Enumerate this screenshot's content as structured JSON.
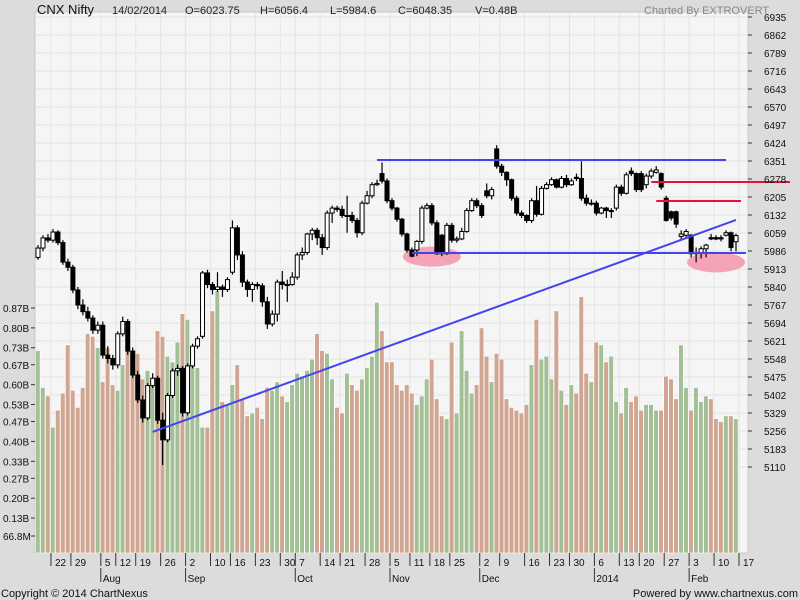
{
  "header": {
    "symbol": "CNX Nifty",
    "date": "14/02/2014",
    "open": "O=6023.75",
    "high": "H=6056.4",
    "low": "L=5984.6",
    "close": "C=6048.35",
    "volume": "V=0.48B",
    "charted_by": "Charted By EXTROVERT"
  },
  "footer": {
    "copyright": "Copyright © 2014 ChartNexus",
    "powered": "Powered by www.chartnexus.com"
  },
  "colors": {
    "plot_bg": "#f5f5f5",
    "grid": "#e4e4e4",
    "up_volume": "#a3bf96",
    "down_volume": "#d0a592",
    "trendline": "#4444ee",
    "resistance_red": "#e8103a",
    "highlight_ellipse": "#f590a8"
  },
  "chart_data": {
    "type": "candlestick",
    "grid": true,
    "price_axis": {
      "side": "right",
      "range": [
        5110,
        6935
      ],
      "ticks": [
        "6935",
        "6862",
        "6789",
        "6716",
        "6643",
        "6570",
        "6497",
        "6424",
        "6351",
        "6278",
        "6205",
        "6132",
        "6059",
        "5986",
        "5913",
        "5840",
        "5767",
        "5694",
        "5621",
        "5548",
        "5475",
        "5402",
        "5329",
        "5256",
        "5183",
        "5110"
      ]
    },
    "volume_axis": {
      "side": "left",
      "ticks": [
        {
          "label": "0.87B",
          "value": 0.87
        },
        {
          "label": "0.80B",
          "value": 0.8
        },
        {
          "label": "0.73B",
          "value": 0.73
        },
        {
          "label": "0.67B",
          "value": 0.67
        },
        {
          "label": "0.60B",
          "value": 0.6
        },
        {
          "label": "0.53B",
          "value": 0.53
        },
        {
          "label": "0.47B",
          "value": 0.47
        },
        {
          "label": "0.40B",
          "value": 0.4
        },
        {
          "label": "0.33B",
          "value": 0.33
        },
        {
          "label": "0.27B",
          "value": 0.27
        },
        {
          "label": "0.20B",
          "value": 0.2
        },
        {
          "label": "0.13B",
          "value": 0.13
        },
        {
          "label": "66.8M",
          "value": 0.0668
        }
      ]
    },
    "x_ticks": [
      {
        "bar": 3,
        "day": "22"
      },
      {
        "bar": 7,
        "day": "29"
      },
      {
        "bar": 13,
        "day": "5",
        "month": "Aug"
      },
      {
        "bar": 16,
        "day": "12"
      },
      {
        "bar": 20,
        "day": "19"
      },
      {
        "bar": 25,
        "day": "26"
      },
      {
        "bar": 30,
        "day": "2",
        "month": "Sep"
      },
      {
        "bar": 35,
        "day": "10"
      },
      {
        "bar": 39,
        "day": "16"
      },
      {
        "bar": 44,
        "day": "23"
      },
      {
        "bar": 49,
        "day": "30"
      },
      {
        "bar": 52,
        "day": "7",
        "month": "Oct"
      },
      {
        "bar": 57,
        "day": "14"
      },
      {
        "bar": 61,
        "day": "21"
      },
      {
        "bar": 66,
        "day": "28"
      },
      {
        "bar": 71,
        "day": "5",
        "month": "Nov"
      },
      {
        "bar": 75,
        "day": "11"
      },
      {
        "bar": 79,
        "day": "18"
      },
      {
        "bar": 83,
        "day": "25"
      },
      {
        "bar": 89,
        "day": "2",
        "month": "Dec"
      },
      {
        "bar": 93,
        "day": "9"
      },
      {
        "bar": 98,
        "day": "16"
      },
      {
        "bar": 103,
        "day": "23"
      },
      {
        "bar": 107,
        "day": "30"
      },
      {
        "bar": 112,
        "day": "6",
        "month": "2014"
      },
      {
        "bar": 117,
        "day": "13"
      },
      {
        "bar": 121,
        "day": "20"
      },
      {
        "bar": 126,
        "day": "27"
      },
      {
        "bar": 131,
        "day": "3",
        "month": "Feb"
      },
      {
        "bar": 136,
        "day": "10"
      },
      {
        "bar": 141,
        "day": "17"
      }
    ],
    "ohlc": [
      [
        5960,
        6010,
        5950,
        5998
      ],
      [
        5998,
        6050,
        5985,
        6039
      ],
      [
        6039,
        6055,
        6020,
        6030
      ],
      [
        6030,
        6075,
        6020,
        6063
      ],
      [
        6063,
        6070,
        6010,
        6020
      ],
      [
        6020,
        6030,
        5930,
        5941
      ],
      [
        5941,
        5955,
        5905,
        5920
      ],
      [
        5920,
        5930,
        5815,
        5828
      ],
      [
        5828,
        5840,
        5750,
        5767
      ],
      [
        5767,
        5790,
        5725,
        5740
      ],
      [
        5740,
        5760,
        5700,
        5714
      ],
      [
        5714,
        5725,
        5650,
        5665
      ],
      [
        5665,
        5700,
        5650,
        5685
      ],
      [
        5685,
        5700,
        5550,
        5564
      ],
      [
        5564,
        5600,
        5530,
        5550
      ],
      [
        5550,
        5565,
        5505,
        5524
      ],
      [
        5524,
        5660,
        5510,
        5650
      ],
      [
        5650,
        5720,
        5640,
        5700
      ],
      [
        5700,
        5710,
        5565,
        5580
      ],
      [
        5580,
        5595,
        5470,
        5483
      ],
      [
        5483,
        5500,
        5370,
        5382
      ],
      [
        5382,
        5400,
        5290,
        5309
      ],
      [
        5309,
        5450,
        5300,
        5440
      ],
      [
        5440,
        5490,
        5430,
        5470
      ],
      [
        5470,
        5480,
        5285,
        5300
      ],
      [
        5300,
        5330,
        5118,
        5220
      ],
      [
        5220,
        5410,
        5210,
        5400
      ],
      [
        5400,
        5510,
        5390,
        5500
      ],
      [
        5500,
        5525,
        5480,
        5510
      ],
      [
        5510,
        5520,
        5315,
        5330
      ],
      [
        5330,
        5530,
        5320,
        5520
      ],
      [
        5520,
        5610,
        5510,
        5600
      ],
      [
        5600,
        5640,
        5590,
        5630
      ],
      [
        5640,
        5905,
        5630,
        5897
      ],
      [
        5897,
        5910,
        5835,
        5850
      ],
      [
        5850,
        5860,
        5810,
        5830
      ],
      [
        5830,
        5900,
        5820,
        5840
      ],
      [
        5840,
        5850,
        5800,
        5830
      ],
      [
        5830,
        5880,
        5820,
        5870
      ],
      [
        5900,
        6110,
        5890,
        6080
      ],
      [
        6080,
        6090,
        5950,
        5970
      ],
      [
        5970,
        5985,
        5840,
        5860
      ],
      [
        5860,
        5870,
        5800,
        5830
      ],
      [
        5830,
        5860,
        5780,
        5850
      ],
      [
        5850,
        5860,
        5830,
        5845
      ],
      [
        5845,
        5855,
        5760,
        5780
      ],
      [
        5780,
        5800,
        5670,
        5690
      ],
      [
        5690,
        5745,
        5680,
        5730
      ],
      [
        5730,
        5870,
        5700,
        5860
      ],
      [
        5860,
        5905,
        5830,
        5850
      ],
      [
        5850,
        5870,
        5780,
        5850
      ],
      [
        5850,
        5900,
        5845,
        5880
      ],
      [
        5880,
        5980,
        5870,
        5970
      ],
      [
        5970,
        6000,
        5950,
        5980
      ],
      [
        5980,
        6060,
        5970,
        6055
      ],
      [
        6055,
        6080,
        6030,
        6070
      ],
      [
        6070,
        6080,
        6010,
        6040
      ],
      [
        6040,
        6055,
        5970,
        6000
      ],
      [
        6000,
        6150,
        5990,
        6140
      ],
      [
        6140,
        6170,
        6100,
        6160
      ],
      [
        6160,
        6170,
        6145,
        6155
      ],
      [
        6155,
        6170,
        6120,
        6130
      ],
      [
        6130,
        6210,
        6060,
        6130
      ],
      [
        6130,
        6145,
        6100,
        6110
      ],
      [
        6110,
        6120,
        6040,
        6060
      ],
      [
        6060,
        6190,
        6050,
        6180
      ],
      [
        6180,
        6230,
        6175,
        6210
      ],
      [
        6210,
        6265,
        6200,
        6255
      ],
      [
        6255,
        6275,
        6250,
        6260
      ],
      [
        6300,
        6345,
        6260,
        6270
      ],
      [
        6270,
        6280,
        6180,
        6190
      ],
      [
        6190,
        6200,
        6150,
        6160
      ],
      [
        6160,
        6165,
        6105,
        6115
      ],
      [
        6115,
        6120,
        6045,
        6055
      ],
      [
        6055,
        6060,
        5980,
        5990
      ],
      [
        5990,
        6000,
        5960,
        5965
      ],
      [
        5990,
        6030,
        5965,
        6025
      ],
      [
        6025,
        6170,
        6015,
        6160
      ],
      [
        6160,
        6180,
        6155,
        6170
      ],
      [
        6170,
        6180,
        6090,
        6100
      ],
      [
        6100,
        6110,
        5970,
        5975
      ],
      [
        6050,
        6055,
        5965,
        5975
      ],
      [
        5975,
        6100,
        5970,
        6090
      ],
      [
        6090,
        6100,
        6020,
        6030
      ],
      [
        6030,
        6045,
        6020,
        6035
      ],
      [
        6035,
        6080,
        6030,
        6065
      ],
      [
        6065,
        6160,
        6060,
        6150
      ],
      [
        6150,
        6200,
        6145,
        6190
      ],
      [
        6190,
        6200,
        6160,
        6170
      ],
      [
        6170,
        6180,
        6120,
        6130
      ],
      [
        6230,
        6260,
        6200,
        6210
      ],
      [
        6210,
        6245,
        6195,
        6235
      ],
      [
        6400,
        6415,
        6320,
        6330
      ],
      [
        6330,
        6340,
        6290,
        6305
      ],
      [
        6305,
        6310,
        6250,
        6275
      ],
      [
        6275,
        6280,
        6190,
        6200
      ],
      [
        6200,
        6210,
        6130,
        6140
      ],
      [
        6140,
        6150,
        6120,
        6130
      ],
      [
        6130,
        6135,
        6100,
        6110
      ],
      [
        6110,
        6200,
        6100,
        6190
      ],
      [
        6190,
        6250,
        6125,
        6135
      ],
      [
        6135,
        6250,
        6130,
        6240
      ],
      [
        6240,
        6265,
        6235,
        6255
      ],
      [
        6255,
        6285,
        6250,
        6275
      ],
      [
        6275,
        6280,
        6240,
        6245
      ],
      [
        6245,
        6290,
        6240,
        6280
      ],
      [
        6280,
        6295,
        6245,
        6255
      ],
      [
        6255,
        6280,
        6250,
        6270
      ],
      [
        6285,
        6300,
        6270,
        6280
      ],
      [
        6280,
        6350,
        6190,
        6200
      ],
      [
        6200,
        6215,
        6170,
        6180
      ],
      [
        6180,
        6195,
        6170,
        6180
      ],
      [
        6180,
        6190,
        6130,
        6140
      ],
      [
        6140,
        6165,
        6135,
        6160
      ],
      [
        6160,
        6165,
        6120,
        6150
      ],
      [
        6150,
        6160,
        6120,
        6150
      ],
      [
        6160,
        6255,
        6150,
        6245
      ],
      [
        6245,
        6255,
        6210,
        6220
      ],
      [
        6220,
        6305,
        6215,
        6295
      ],
      [
        6310,
        6325,
        6290,
        6300
      ],
      [
        6300,
        6305,
        6225,
        6235
      ],
      [
        6300,
        6310,
        6225,
        6235
      ],
      [
        6255,
        6300,
        6240,
        6290
      ],
      [
        6290,
        6320,
        6280,
        6310
      ],
      [
        6305,
        6330,
        6300,
        6315
      ],
      [
        6300,
        6305,
        6235,
        6245
      ],
      [
        6200,
        6210,
        6105,
        6110
      ],
      [
        6145,
        6150,
        6110,
        6120
      ],
      [
        6145,
        6150,
        6080,
        6095
      ],
      [
        6045,
        6070,
        6030,
        6055
      ],
      [
        6050,
        6075,
        6040,
        6065
      ],
      [
        6050,
        6055,
        5960,
        5975
      ],
      [
        5975,
        6000,
        5940,
        5980
      ],
      [
        5980,
        6005,
        5955,
        5995
      ],
      [
        5995,
        6015,
        5960,
        6010
      ],
      [
        6040,
        6055,
        6030,
        6035
      ],
      [
        6040,
        6050,
        6030,
        6035
      ],
      [
        6040,
        6050,
        6025,
        6035
      ],
      [
        6050,
        6070,
        6045,
        6060
      ],
      [
        6060,
        6065,
        5985,
        6000
      ],
      [
        6023.75,
        6056.4,
        5984.6,
        6048.35
      ]
    ],
    "volume_billions": [
      0.72,
      0.59,
      0.56,
      0.45,
      0.51,
      0.57,
      0.74,
      0.58,
      0.52,
      0.59,
      0.78,
      0.77,
      0.73,
      0.61,
      0.73,
      0.6,
      0.58,
      0.67,
      0.75,
      0.72,
      0.71,
      0.62,
      0.65,
      0.6,
      0.79,
      0.77,
      0.7,
      0.68,
      0.75,
      0.85,
      0.83,
      0.67,
      0.66,
      0.45,
      0.45,
      0.86,
      0.93,
      0.54,
      0.53,
      0.6,
      0.67,
      0.55,
      0.49,
      0.5,
      0.52,
      0.48,
      0.59,
      0.58,
      0.61,
      0.56,
      0.54,
      0.6,
      0.64,
      0.63,
      0.65,
      0.69,
      0.78,
      0.72,
      0.71,
      0.62,
      0.52,
      0.5,
      0.64,
      0.6,
      0.58,
      0.62,
      0.66,
      0.7,
      0.89,
      0.79,
      0.68,
      0.68,
      0.6,
      0.58,
      0.6,
      0.57,
      0.53,
      0.56,
      0.62,
      0.69,
      0.55,
      0.49,
      0.48,
      0.75,
      0.5,
      0.79,
      0.65,
      0.57,
      0.6,
      0.8,
      0.7,
      0.61,
      0.71,
      0.69,
      0.55,
      0.52,
      0.51,
      0.5,
      0.53,
      0.67,
      0.83,
      0.69,
      0.7,
      0.62,
      0.86,
      0.58,
      0.53,
      0.6,
      0.57,
      0.91,
      0.64,
      0.61,
      0.75,
      0.74,
      0.68,
      0.7,
      0.54,
      0.5,
      0.59,
      0.54,
      0.56,
      0.51,
      0.53,
      0.53,
      0.51,
      0.51,
      0.63,
      0.62,
      0.55,
      0.74,
      0.59,
      0.51,
      0.59,
      0.54,
      0.56,
      0.55,
      0.48,
      0.47,
      0.49,
      0.49,
      0.48
    ],
    "annotations": [
      {
        "kind": "line",
        "color": "trendline",
        "from": {
          "bar": 68,
          "price": 6355
        },
        "to": {
          "bar": 138,
          "price": 6355
        }
      },
      {
        "kind": "line",
        "color": "trendline",
        "from": {
          "bar": 75,
          "price": 5978
        },
        "to": {
          "bar": 142,
          "price": 5978
        }
      },
      {
        "kind": "line",
        "color": "trendline",
        "from": {
          "bar": 23,
          "price": 5252
        },
        "to": {
          "bar": 140,
          "price": 6112
        }
      },
      {
        "kind": "line",
        "color": "resistance_red",
        "from": {
          "bar": 123,
          "price": 6266
        },
        "to": {
          "bar": 151,
          "price": 6266
        }
      },
      {
        "kind": "line",
        "color": "resistance_red",
        "from": {
          "bar": 124,
          "price": 6189
        },
        "to": {
          "bar": 141,
          "price": 6189
        }
      },
      {
        "kind": "ellipse",
        "color": "highlight_ellipse",
        "center": {
          "bar": 79,
          "price": 5963
        }
      },
      {
        "kind": "ellipse",
        "color": "highlight_ellipse",
        "center": {
          "bar": 136,
          "price": 5940
        }
      }
    ]
  }
}
